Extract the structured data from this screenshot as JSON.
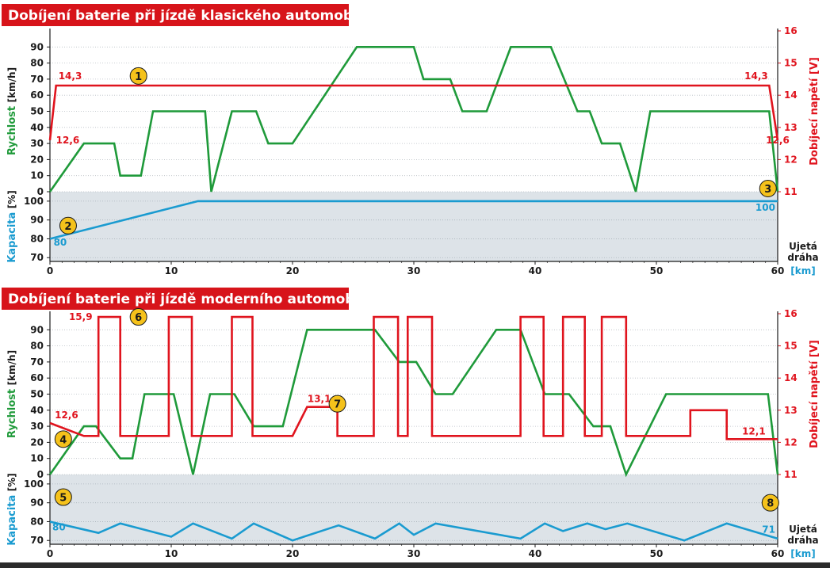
{
  "colors": {
    "speed": "#1f9a3a",
    "voltage": "#e0141e",
    "capacity": "#1a9bd0",
    "title_bg": "#d7141a",
    "capacity_bg": "#dde3e8",
    "grid": "#b8bec4",
    "marker_fill": "#f5c21b"
  },
  "chart_data": [
    {
      "type": "line",
      "title": "Dobíjení baterie při jízdě klasického automobilu",
      "xlabel_line1": "Ujetá",
      "xlabel_line2": "dráha",
      "xlabel_unit": "[km]",
      "xticks": [
        0,
        10,
        20,
        30,
        40,
        50,
        60
      ],
      "xlim": [
        0,
        60
      ],
      "speed_axis": {
        "label_name": "Rychlost",
        "label_unit": "[km/h]",
        "ylim": [
          0,
          100
        ],
        "ticks": [
          0,
          10,
          20,
          30,
          40,
          50,
          60,
          70,
          80,
          90
        ]
      },
      "voltage_axis": {
        "label": "Dobíjecí napětí [V]",
        "ylim": [
          11,
          16
        ],
        "ticks": [
          11,
          12,
          13,
          14,
          15,
          16
        ]
      },
      "capacity_axis": {
        "label_name": "Kapacita",
        "label_unit": "[%]",
        "ylim": [
          68,
          105
        ],
        "ticks": [
          70,
          80,
          90,
          100
        ]
      },
      "series": [
        {
          "name": "Rychlost",
          "axis": "speed",
          "x": [
            0,
            2.8,
            5.3,
            5.8,
            7.5,
            8.5,
            12.8,
            13.3,
            15,
            17,
            18,
            20,
            25.3,
            30,
            30.8,
            33,
            34,
            36,
            38,
            41.3,
            43.5,
            44.5,
            45.5,
            47,
            48.3,
            49.5,
            59.3,
            60
          ],
          "values": [
            0,
            30,
            30,
            10,
            10,
            50,
            50,
            0,
            50,
            50,
            30,
            30,
            90,
            90,
            70,
            70,
            50,
            50,
            90,
            90,
            50,
            50,
            30,
            30,
            0,
            50,
            50,
            0
          ]
        },
        {
          "name": "Dobíjecí napětí",
          "axis": "voltage",
          "x": [
            0,
            0.5,
            59.3,
            60
          ],
          "values": [
            12.6,
            14.3,
            14.3,
            12.6
          ]
        },
        {
          "name": "Kapacita",
          "axis": "capacity",
          "x": [
            0,
            12.2,
            60
          ],
          "values": [
            80,
            100,
            100
          ]
        }
      ],
      "value_labels": [
        {
          "text": "14,3",
          "x": 0.7,
          "v": 14.3,
          "axis": "voltage",
          "anchor": "start",
          "dy": -8
        },
        {
          "text": "12,6",
          "x": 0.5,
          "v": 12.6,
          "axis": "voltage",
          "anchor": "start",
          "dy": 4
        },
        {
          "text": "14,3",
          "x": 59.2,
          "v": 14.3,
          "axis": "voltage",
          "anchor": "end",
          "dy": -8
        },
        {
          "text": "12,6",
          "x": 60,
          "v": 12.6,
          "axis": "voltage",
          "anchor": "middle",
          "dy": 4
        },
        {
          "text": "80",
          "x": 0.3,
          "v": 78,
          "axis": "capacity",
          "anchor": "start",
          "dy": 4,
          "kind": "capacity"
        },
        {
          "text": "100",
          "x": 59.8,
          "v": 97.5,
          "axis": "capacity",
          "anchor": "end",
          "dy": 6,
          "kind": "capacity"
        }
      ],
      "markers": [
        {
          "text": "1",
          "x": 7.3,
          "v": 14.6,
          "axis": "voltage"
        },
        {
          "text": "2",
          "x": 1.5,
          "v": 87,
          "axis": "capacity"
        },
        {
          "text": "3",
          "x": 59.2,
          "v": 2,
          "axis": "speed"
        }
      ]
    },
    {
      "type": "line",
      "title": "Dobíjení baterie při jízdě moderního automobilu",
      "xlabel_line1": "Ujetá",
      "xlabel_line2": "dráha",
      "xlabel_unit": "[km]",
      "xticks": [
        0,
        10,
        20,
        30,
        40,
        50,
        60
      ],
      "xlim": [
        0,
        60
      ],
      "speed_axis": {
        "label_name": "Rychlost",
        "label_unit": "[km/h]",
        "ylim": [
          0,
          100
        ],
        "ticks": [
          0,
          10,
          20,
          30,
          40,
          50,
          60,
          70,
          80,
          90
        ]
      },
      "voltage_axis": {
        "label": "Dobíjecí napětí [V]",
        "ylim": [
          11,
          16
        ],
        "ticks": [
          11,
          12,
          13,
          14,
          15,
          16
        ]
      },
      "capacity_axis": {
        "label_name": "Kapacita",
        "label_unit": "[%]",
        "ylim": [
          68,
          105
        ],
        "ticks": [
          70,
          80,
          90,
          100
        ]
      },
      "series": [
        {
          "name": "Rychlost",
          "axis": "speed",
          "x": [
            0,
            2.8,
            3.8,
            5.8,
            6.8,
            7.8,
            10.2,
            11.8,
            13.2,
            15.2,
            16.8,
            19.2,
            21.2,
            26.8,
            28.8,
            30.2,
            31.8,
            33.2,
            36.8,
            38.8,
            40.8,
            42.8,
            44.8,
            46.2,
            47.5,
            50.8,
            59.2,
            60
          ],
          "values": [
            0,
            30,
            30,
            10,
            10,
            50,
            50,
            0,
            50,
            50,
            30,
            30,
            90,
            90,
            70,
            70,
            50,
            50,
            90,
            90,
            50,
            50,
            30,
            30,
            0,
            50,
            50,
            0
          ]
        },
        {
          "name": "Dobíjecí napětí",
          "axis": "voltage",
          "x": [
            0,
            2.8,
            4,
            4,
            5.8,
            5.8,
            9.8,
            9.8,
            11.7,
            11.7,
            15,
            15,
            16.7,
            16.7,
            20,
            21.2,
            21.2,
            23.7,
            23.7,
            26.7,
            26.7,
            28.7,
            28.7,
            29.5,
            29.5,
            31.5,
            31.5,
            38.8,
            38.8,
            40.7,
            40.7,
            42.3,
            42.3,
            44.1,
            44.1,
            45.5,
            45.5,
            47.5,
            47.5,
            49,
            49,
            52.8,
            52.8,
            55.8,
            55.8,
            60
          ],
          "values": [
            12.6,
            12.2,
            12.2,
            15.9,
            15.9,
            12.2,
            12.2,
            15.9,
            15.9,
            12.2,
            12.2,
            15.9,
            15.9,
            12.2,
            12.2,
            13.1,
            13.1,
            13.1,
            12.2,
            12.2,
            15.9,
            15.9,
            12.2,
            12.2,
            15.9,
            15.9,
            12.2,
            12.2,
            15.9,
            15.9,
            12.2,
            12.2,
            15.9,
            15.9,
            12.2,
            12.2,
            15.9,
            15.9,
            12.2,
            12.2,
            12.2,
            12.2,
            13,
            13,
            12.1,
            12.1
          ]
        },
        {
          "name": "Kapacita",
          "axis": "capacity",
          "x": [
            0,
            4,
            5.8,
            10,
            11.8,
            15,
            16.8,
            20,
            23.8,
            26.8,
            28.8,
            30,
            31.8,
            38.8,
            40.8,
            42.3,
            44.3,
            45.8,
            47.6,
            52.3,
            55.8,
            60
          ],
          "values": [
            80,
            74,
            79,
            72,
            79,
            71,
            79,
            70,
            78,
            71,
            79,
            73,
            79,
            71,
            79,
            75,
            79,
            76,
            79,
            70,
            79,
            71
          ]
        }
      ],
      "value_labels": [
        {
          "text": "15,9",
          "x": 3.5,
          "v": 15.9,
          "axis": "voltage",
          "anchor": "end",
          "dy": 4
        },
        {
          "text": "12,6",
          "x": 0.4,
          "v": 12.6,
          "axis": "voltage",
          "anchor": "start",
          "dy": -6
        },
        {
          "text": "13,1",
          "x": 22.2,
          "v": 13.1,
          "axis": "voltage",
          "anchor": "middle",
          "dy": -6
        },
        {
          "text": "12,1",
          "x": 59,
          "v": 12.1,
          "axis": "voltage",
          "anchor": "end",
          "dy": -6
        },
        {
          "text": "80",
          "x": 0.2,
          "v": 77,
          "axis": "capacity",
          "anchor": "start",
          "dy": 4,
          "kind": "capacity"
        },
        {
          "text": "71",
          "x": 59.8,
          "v": 75,
          "axis": "capacity",
          "anchor": "end",
          "dy": 2,
          "kind": "capacity"
        }
      ],
      "markers": [
        {
          "text": "6",
          "x": 7.3,
          "v": 15.9,
          "axis": "voltage"
        },
        {
          "text": "7",
          "x": 23.7,
          "v": 13.2,
          "axis": "voltage"
        },
        {
          "text": "4",
          "x": 1.1,
          "v": 12.1,
          "axis": "voltage"
        },
        {
          "text": "5",
          "x": 1.1,
          "v": 93,
          "axis": "capacity"
        },
        {
          "text": "8",
          "x": 59.4,
          "v": 90,
          "axis": "capacity"
        }
      ]
    }
  ]
}
